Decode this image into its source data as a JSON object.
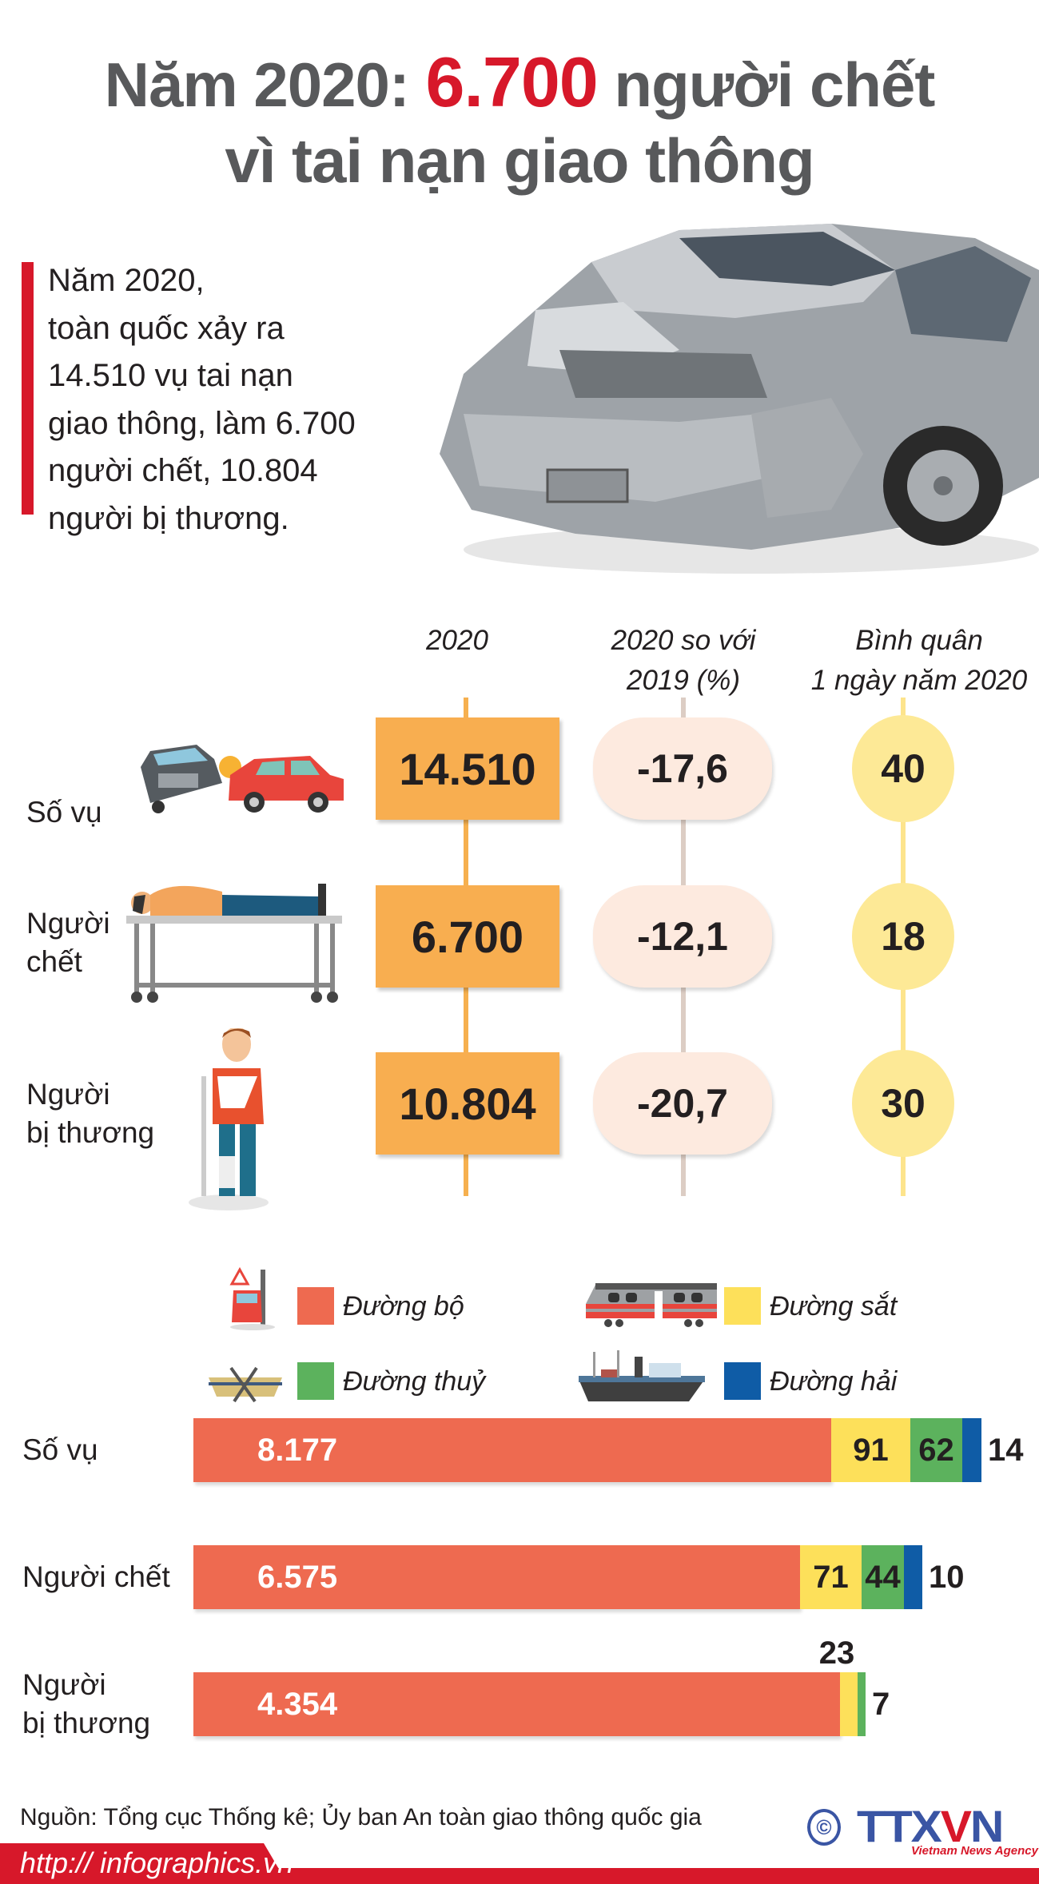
{
  "title": {
    "part1": "Năm 2020: ",
    "highlight": "6.700",
    "part2": " người chết",
    "line2": "vì tai nạn giao thông"
  },
  "intro": {
    "lines": [
      "Năm 2020,",
      "toàn quốc xảy ra",
      "14.510 vụ tai nạn",
      "giao thông, làm 6.700",
      "người chết, 10.804",
      "người bị thương."
    ]
  },
  "stats": {
    "headers": {
      "col1": "2020",
      "col2_line1": "2020 so với",
      "col2_line2": "2019 (%)",
      "col3_line1": "Bình quân",
      "col3_line2": "1 ngày năm 2020"
    },
    "rows": [
      {
        "label_line1": "Số vụ",
        "label_line2": "",
        "icon": "car-crash-icon",
        "value_2020": "14.510",
        "change_pct": "-17,6",
        "per_day": "40"
      },
      {
        "label_line1": "Người",
        "label_line2": "chết",
        "icon": "stretcher-body-icon",
        "value_2020": "6.700",
        "change_pct": "-12,1",
        "per_day": "18"
      },
      {
        "label_line1": "Người",
        "label_line2": "bị thương",
        "icon": "injured-person-icon",
        "value_2020": "10.804",
        "change_pct": "-20,7",
        "per_day": "30"
      }
    ],
    "colors": {
      "box": "#f8ae50",
      "pill": "#fdeadf",
      "circle": "#fde996"
    }
  },
  "legend": [
    {
      "label": "Đường bộ",
      "color": "#ee6a50",
      "icon": "road-accident-icon"
    },
    {
      "label": "Đường sắt",
      "color": "#fde05a",
      "icon": "train-icon"
    },
    {
      "label": "Đường thuỷ",
      "color": "#5cb25d",
      "icon": "boat-icon"
    },
    {
      "label": "Đường hải",
      "color": "#0f5ca6",
      "icon": "ship-icon"
    }
  ],
  "chart_data": {
    "type": "bar",
    "orientation": "horizontal",
    "stacked": true,
    "categories": [
      "Số vụ",
      "Người chết",
      "Người bị thương"
    ],
    "category_lines": [
      [
        "Số vụ"
      ],
      [
        "Người chết"
      ],
      [
        "Người",
        "bị thương"
      ]
    ],
    "series": [
      {
        "name": "Đường bộ",
        "color": "#ee6a50",
        "values": [
          8177,
          6575,
          4354
        ],
        "labels": [
          "8.177",
          "6.575",
          "4.354"
        ]
      },
      {
        "name": "Đường sắt",
        "color": "#fde05a",
        "values": [
          91,
          71,
          23
        ],
        "labels": [
          "91",
          "71",
          "23"
        ]
      },
      {
        "name": "Đường thuỷ",
        "color": "#5cb25d",
        "values": [
          62,
          44,
          7
        ],
        "labels": [
          "62",
          "44",
          "7"
        ]
      },
      {
        "name": "Đường hải",
        "color": "#0f5ca6",
        "values": [
          14,
          10,
          null
        ],
        "labels": [
          "14",
          "10",
          ""
        ]
      }
    ],
    "legend": "top",
    "grid": false
  },
  "footer": {
    "source": "Nguồn: Tổng cục Thống kê; Ủy ban An toàn giao thông quốc gia",
    "url": "http:// infographics.vn",
    "logo": {
      "copyright": "©",
      "text_a": "TTX",
      "text_v": "V",
      "text_b": "N",
      "subtitle": "Vietnam News Agency"
    }
  }
}
